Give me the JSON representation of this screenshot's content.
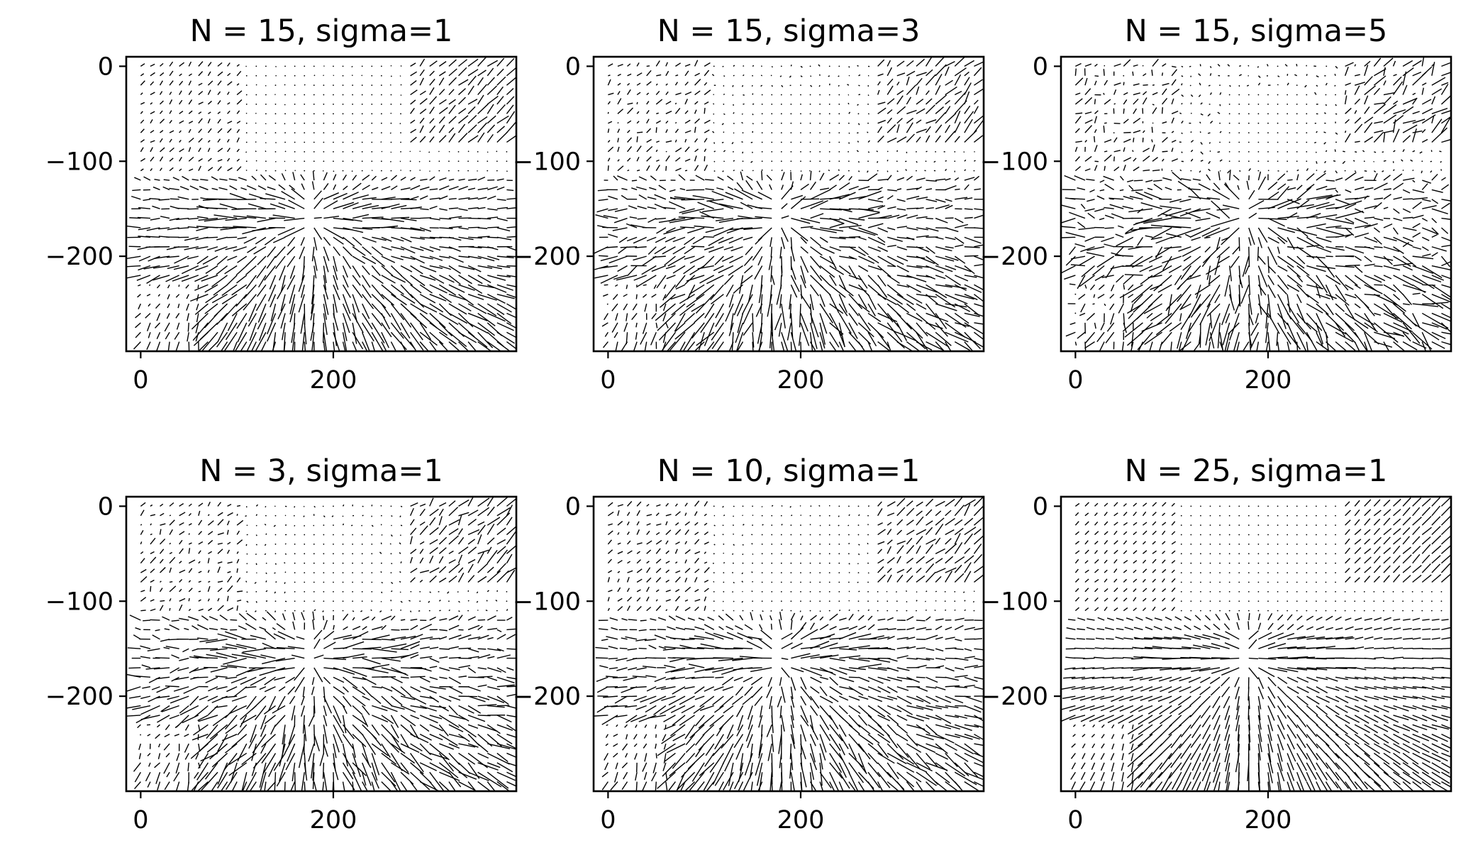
{
  "figure": {
    "colors": {
      "background": "#ffffff",
      "ink": "#000000"
    }
  },
  "chart_data": [
    {
      "type": "quiver",
      "title": "N = 15, sigma=1",
      "xlim": [
        -15,
        390
      ],
      "ylim": [
        -300,
        10
      ],
      "xticks": [
        0,
        200
      ],
      "xtick_labels": [
        "0",
        "200"
      ],
      "yticks": [
        0,
        -100,
        -200
      ],
      "ytick_labels": [
        "0",
        "−100",
        "−200"
      ],
      "grid": false,
      "field": {
        "n": 15,
        "sigma": 1,
        "grid_step": 10,
        "x_range": [
          0,
          380
        ],
        "y_range": [
          -290,
          0
        ]
      }
    },
    {
      "type": "quiver",
      "title": "N = 15, sigma=3",
      "xlim": [
        -15,
        390
      ],
      "ylim": [
        -300,
        10
      ],
      "xticks": [
        0,
        200
      ],
      "xtick_labels": [
        "0",
        "200"
      ],
      "yticks": [
        0,
        -100,
        -200
      ],
      "ytick_labels": [
        "0",
        "−100",
        "−200"
      ],
      "grid": false,
      "field": {
        "n": 15,
        "sigma": 3,
        "grid_step": 10,
        "x_range": [
          0,
          380
        ],
        "y_range": [
          -290,
          0
        ]
      }
    },
    {
      "type": "quiver",
      "title": "N = 15, sigma=5",
      "xlim": [
        -15,
        390
      ],
      "ylim": [
        -300,
        10
      ],
      "xticks": [
        0,
        200
      ],
      "xtick_labels": [
        "0",
        "200"
      ],
      "yticks": [
        0,
        -100,
        -200
      ],
      "ytick_labels": [
        "0",
        "−100",
        "−200"
      ],
      "grid": false,
      "field": {
        "n": 15,
        "sigma": 5,
        "grid_step": 10,
        "x_range": [
          0,
          380
        ],
        "y_range": [
          -290,
          0
        ]
      }
    },
    {
      "type": "quiver",
      "title": "N = 3, sigma=1",
      "xlim": [
        -15,
        390
      ],
      "ylim": [
        -300,
        10
      ],
      "xticks": [
        0,
        200
      ],
      "xtick_labels": [
        "0",
        "200"
      ],
      "yticks": [
        0,
        -100,
        -200
      ],
      "ytick_labels": [
        "0",
        "−100",
        "−200"
      ],
      "grid": false,
      "field": {
        "n": 3,
        "sigma": 1,
        "grid_step": 10,
        "x_range": [
          0,
          380
        ],
        "y_range": [
          -290,
          0
        ]
      }
    },
    {
      "type": "quiver",
      "title": "N = 10, sigma=1",
      "xlim": [
        -15,
        390
      ],
      "ylim": [
        -300,
        10
      ],
      "xticks": [
        0,
        200
      ],
      "xtick_labels": [
        "0",
        "200"
      ],
      "yticks": [
        0,
        -100,
        -200
      ],
      "ytick_labels": [
        "0",
        "−100",
        "−200"
      ],
      "grid": false,
      "field": {
        "n": 10,
        "sigma": 1,
        "grid_step": 10,
        "x_range": [
          0,
          380
        ],
        "y_range": [
          -290,
          0
        ]
      }
    },
    {
      "type": "quiver",
      "title": "N = 25, sigma=1",
      "xlim": [
        -15,
        390
      ],
      "ylim": [
        -300,
        10
      ],
      "xticks": [
        0,
        200
      ],
      "xtick_labels": [
        "0",
        "200"
      ],
      "yticks": [
        0,
        -100,
        -200
      ],
      "ytick_labels": [
        "0",
        "−100",
        "−200"
      ],
      "grid": false,
      "field": {
        "n": 25,
        "sigma": 1,
        "grid_step": 10,
        "x_range": [
          0,
          380
        ],
        "y_range": [
          -290,
          0
        ]
      }
    }
  ]
}
